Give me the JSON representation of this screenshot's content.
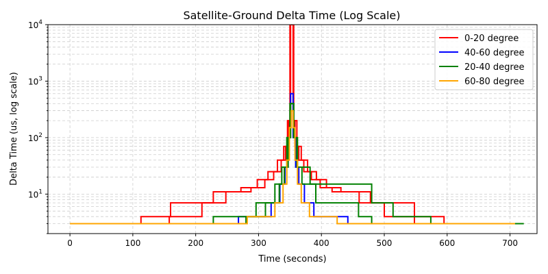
{
  "chart_data": {
    "type": "line",
    "title": "Satellite-Ground Delta Time (Log Scale)",
    "xlabel": "Time (seconds)",
    "ylabel": "Delta Time (us, log scale)",
    "xlim": [
      -35,
      743
    ],
    "ylim": [
      2,
      10000
    ],
    "yscale": "log",
    "grid": true,
    "legend_position": "top-right",
    "x_ticks": [
      0,
      100,
      200,
      300,
      400,
      500,
      600,
      700
    ],
    "x_tick_labels": [
      "0",
      "100",
      "200",
      "300",
      "400",
      "500",
      "600",
      "700"
    ],
    "y_ticks": [
      10,
      100,
      1000,
      10000
    ],
    "y_tick_labels": [
      {
        "base": "10",
        "exp": "1"
      },
      {
        "base": "10",
        "exp": "2"
      },
      {
        "base": "10",
        "exp": "3"
      },
      {
        "base": "10",
        "exp": "4"
      }
    ],
    "peak_time": 353,
    "series": [
      {
        "name": "0-20 degree",
        "color": "#ff0000",
        "curves": [
          {
            "start": 42,
            "levels": [
              [
                113,
                3
              ],
              [
                160,
                4
              ],
              [
                228,
                7
              ],
              [
                272,
                11
              ],
              [
                298,
                13
              ],
              [
                315,
                18
              ],
              [
                330,
                25
              ],
              [
                340,
                40
              ],
              [
                346,
                70
              ],
              [
                350,
                200
              ],
              [
                353,
                10000
              ]
            ]
          },
          {
            "start": 30,
            "levels": [
              [
                158,
                3
              ],
              [
                210,
                4
              ],
              [
                248,
                7
              ],
              [
                288,
                11
              ],
              [
                310,
                13
              ],
              [
                324,
                18
              ],
              [
                336,
                25
              ],
              [
                343,
                40
              ],
              [
                348,
                70
              ],
              [
                351,
                200
              ],
              [
                353,
                10000
              ]
            ]
          },
          {
            "start": 666,
            "levels": [
              [
                595,
                3
              ],
              [
                548,
                4
              ],
              [
                478,
                7
              ],
              [
                431,
                11
              ],
              [
                408,
                13
              ],
              [
                392,
                18
              ],
              [
                378,
                25
              ],
              [
                368,
                40
              ],
              [
                361,
                70
              ],
              [
                356,
                200
              ],
              [
                353,
                10000
              ]
            ]
          },
          {
            "start": 680,
            "levels": [
              [
                548,
                3
              ],
              [
                500,
                4
              ],
              [
                460,
                7
              ],
              [
                417,
                11
              ],
              [
                398,
                13
              ],
              [
                384,
                18
              ],
              [
                372,
                25
              ],
              [
                364,
                40
              ],
              [
                358,
                70
              ],
              [
                355,
                200
              ],
              [
                353,
                10000
              ]
            ]
          }
        ]
      },
      {
        "name": "40-60 degree",
        "color": "#0000ff",
        "curves": [
          {
            "start": 50,
            "levels": [
              [
                268,
                3
              ],
              [
                320,
                4
              ],
              [
                334,
                7
              ],
              [
                342,
                15
              ],
              [
                347,
                30
              ],
              [
                351,
                100
              ],
              [
                353,
                600
              ]
            ]
          },
          {
            "start": 660,
            "levels": [
              [
                442,
                3
              ],
              [
                388,
                4
              ],
              [
                373,
                7
              ],
              [
                364,
                15
              ],
              [
                359,
                30
              ],
              [
                355,
                100
              ],
              [
                353,
                600
              ]
            ]
          }
        ]
      },
      {
        "name": "20-40 degree",
        "color": "#008000",
        "curves": [
          {
            "start": 32,
            "levels": [
              [
                228,
                3
              ],
              [
                296,
                4
              ],
              [
                326,
                7
              ],
              [
                337,
                15
              ],
              [
                345,
                30
              ],
              [
                350,
                100
              ],
              [
                353,
                400
              ]
            ]
          },
          {
            "start": 722,
            "levels": [
              [
                574,
                3
              ],
              [
                514,
                4
              ],
              [
                480,
                7
              ],
              [
                382,
                15
              ],
              [
                362,
                30
              ],
              [
                356,
                100
              ],
              [
                353,
                400
              ]
            ]
          },
          {
            "start": 20,
            "levels": [
              [
                280,
                3
              ],
              [
                311,
                4
              ],
              [
                333,
                7
              ],
              [
                341,
                15
              ],
              [
                347,
                30
              ],
              [
                351,
                100
              ],
              [
                353,
                400
              ]
            ]
          },
          {
            "start": 700,
            "levels": [
              [
                480,
                3
              ],
              [
                459,
                4
              ],
              [
                391,
                7
              ],
              [
                369,
                15
              ],
              [
                361,
                30
              ],
              [
                356,
                100
              ],
              [
                353,
                400
              ]
            ]
          }
        ]
      },
      {
        "name": "60-80 degree",
        "color": "#ffa500",
        "curves": [
          {
            "start": 0,
            "levels": [
              [
                282,
                3
              ],
              [
                326,
                4
              ],
              [
                339,
                7
              ],
              [
                345,
                15
              ],
              [
                349,
                40
              ],
              [
                352,
                150
              ],
              [
                353,
                300
              ]
            ]
          },
          {
            "start": 708,
            "levels": [
              [
                425,
                3
              ],
              [
                381,
                4
              ],
              [
                368,
                7
              ],
              [
                362,
                15
              ],
              [
                358,
                40
              ],
              [
                355,
                150
              ],
              [
                353,
                300
              ]
            ]
          }
        ]
      }
    ]
  }
}
